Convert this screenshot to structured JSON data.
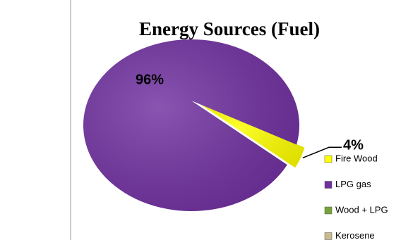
{
  "chart_data": {
    "type": "pie",
    "title": "Energy Sources (Fuel)",
    "categories": [
      "Fire Wood",
      "LPG gas",
      "Wood + LPG",
      "Kerosene"
    ],
    "values": [
      4,
      96,
      0,
      0
    ],
    "value_labels": [
      "4%",
      "96%",
      null,
      null
    ],
    "colors": [
      "#ffff00",
      "#7030a0",
      "#77a33a",
      "#c8bb8f"
    ],
    "legend": "right"
  }
}
